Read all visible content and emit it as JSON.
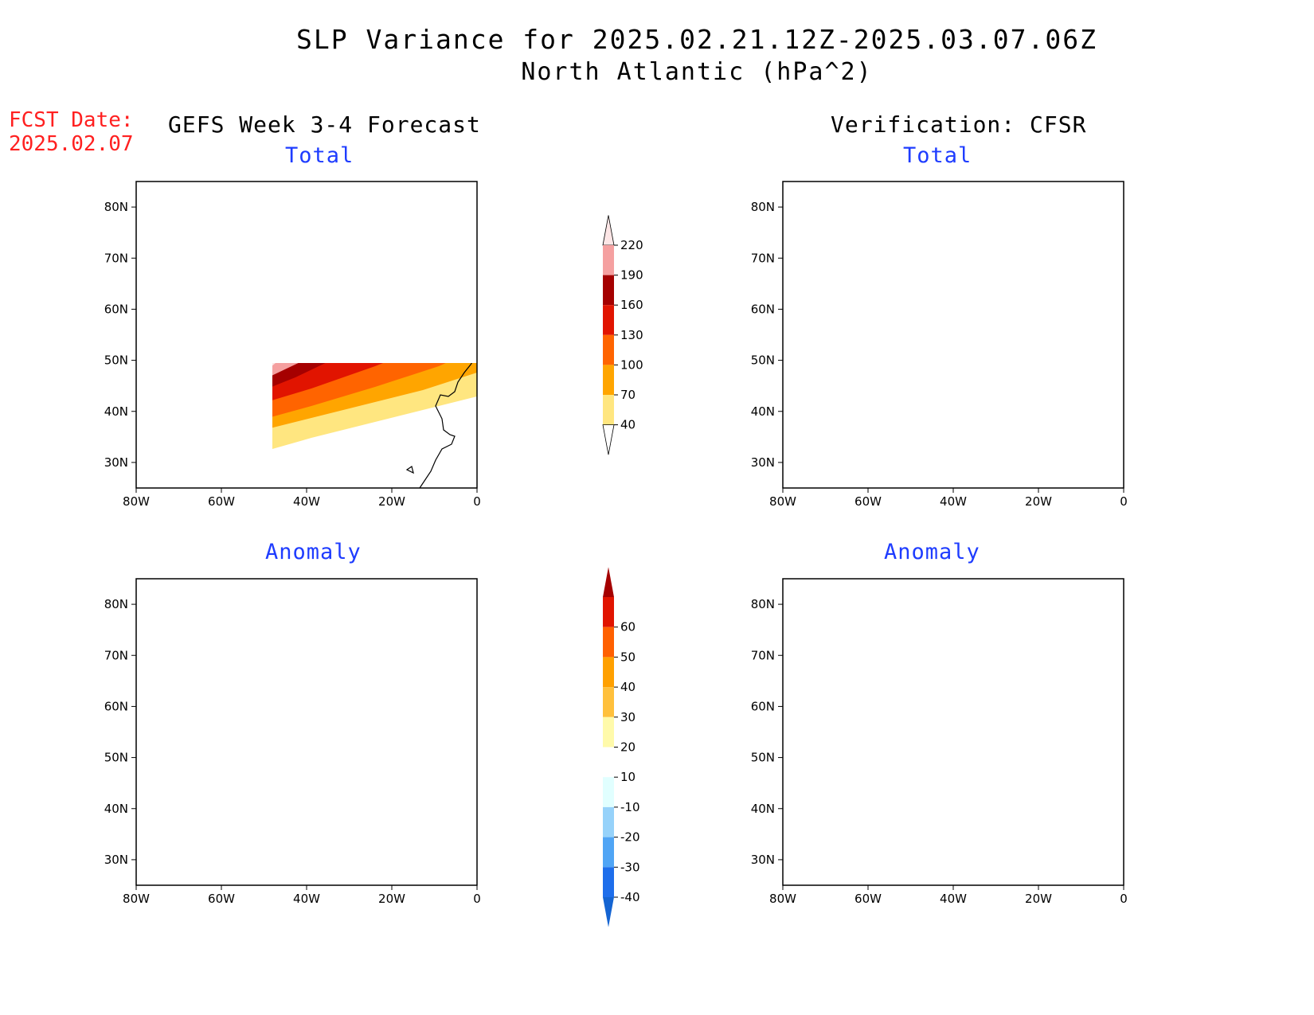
{
  "title": "SLP Variance for 2025.02.21.12Z-2025.03.07.06Z",
  "subtitle": "North Atlantic (hPa^2)",
  "fcst_label": "FCST Date:",
  "fcst_date": "2025.02.07",
  "columns": {
    "left": "GEFS Week 3-4 Forecast",
    "right": "Verification: CFSR"
  },
  "panels": {
    "total_label": "Total",
    "anomaly_label": "Anomaly"
  },
  "axes": {
    "lon_labels": [
      "80W",
      "60W",
      "40W",
      "20W",
      "0"
    ],
    "lat_labels": [
      "30N",
      "40N",
      "50N",
      "60N",
      "70N",
      "80N"
    ],
    "lon_range": [
      -80,
      0
    ],
    "lat_range": [
      25,
      85
    ]
  },
  "colorbars": {
    "total": {
      "levels": [
        "40",
        "70",
        "100",
        "130",
        "160",
        "190",
        "220"
      ],
      "colors": [
        "#ffffff",
        "#ffe680",
        "#ffa500",
        "#ff6400",
        "#e11400",
        "#a50000",
        "#f5a0a0",
        "#fde6e6"
      ]
    },
    "anomaly": {
      "levels": [
        "-40",
        "-30",
        "-20",
        "-10",
        "10",
        "20",
        "30",
        "40",
        "50",
        "60"
      ],
      "colors": [
        "#1464d2",
        "#1e6eeb",
        "#50a5f5",
        "#96d2fa",
        "#e1ffff",
        "#ffffff",
        "#fffaaa",
        "#ffc03c",
        "#ffa000",
        "#ff6000",
        "#e11400",
        "#a50000"
      ]
    }
  }
}
